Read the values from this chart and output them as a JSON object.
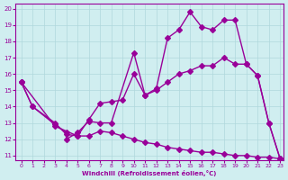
{
  "xlabel": "Windchill (Refroidissement éolien,°C)",
  "ylabel": "",
  "bg_color": "#d0eef0",
  "line_color": "#990099",
  "grid_color": "#b0d8dc",
  "xlim": [
    0,
    23
  ],
  "ylim": [
    11,
    20
  ],
  "yticks": [
    11,
    12,
    13,
    14,
    15,
    16,
    17,
    18,
    19,
    20
  ],
  "xticks": [
    0,
    1,
    2,
    3,
    4,
    5,
    6,
    7,
    8,
    9,
    10,
    11,
    12,
    13,
    14,
    15,
    16,
    17,
    18,
    19,
    20,
    21,
    22,
    23
  ],
  "line1_x": [
    0,
    1,
    3,
    4,
    4,
    5,
    6,
    7,
    8,
    10,
    11,
    12,
    13,
    14,
    15,
    16,
    17,
    18,
    19,
    20,
    21,
    22,
    23
  ],
  "line1_y": [
    15.5,
    14.0,
    12.9,
    12.4,
    12.0,
    12.4,
    13.1,
    13.0,
    13.0,
    17.3,
    14.7,
    15.1,
    18.2,
    18.7,
    19.8,
    18.9,
    18.7,
    19.3,
    19.3,
    16.6,
    15.9,
    13.0,
    10.8
  ],
  "line2_x": [
    0,
    1,
    3,
    4,
    5,
    6,
    7,
    8,
    9,
    10,
    11,
    12,
    13,
    14,
    15,
    16,
    17,
    18,
    19,
    20,
    21,
    22,
    23
  ],
  "line2_y": [
    15.5,
    14.0,
    13.0,
    12.3,
    12.2,
    13.2,
    14.2,
    14.3,
    14.4,
    16.0,
    14.7,
    15.0,
    15.5,
    16.0,
    16.2,
    16.5,
    16.5,
    17.0,
    16.6,
    16.6,
    15.9,
    13.0,
    10.8
  ],
  "line3_x": [
    0,
    3,
    5,
    6,
    7,
    8,
    9,
    10,
    11,
    12,
    13,
    14,
    15,
    16,
    17,
    18,
    19,
    20,
    21,
    22,
    23
  ],
  "line3_y": [
    15.5,
    12.8,
    12.2,
    12.2,
    12.5,
    12.4,
    12.2,
    12.0,
    11.8,
    11.7,
    11.5,
    11.4,
    11.3,
    11.2,
    11.2,
    11.1,
    11.0,
    11.0,
    10.9,
    10.9,
    10.8
  ]
}
